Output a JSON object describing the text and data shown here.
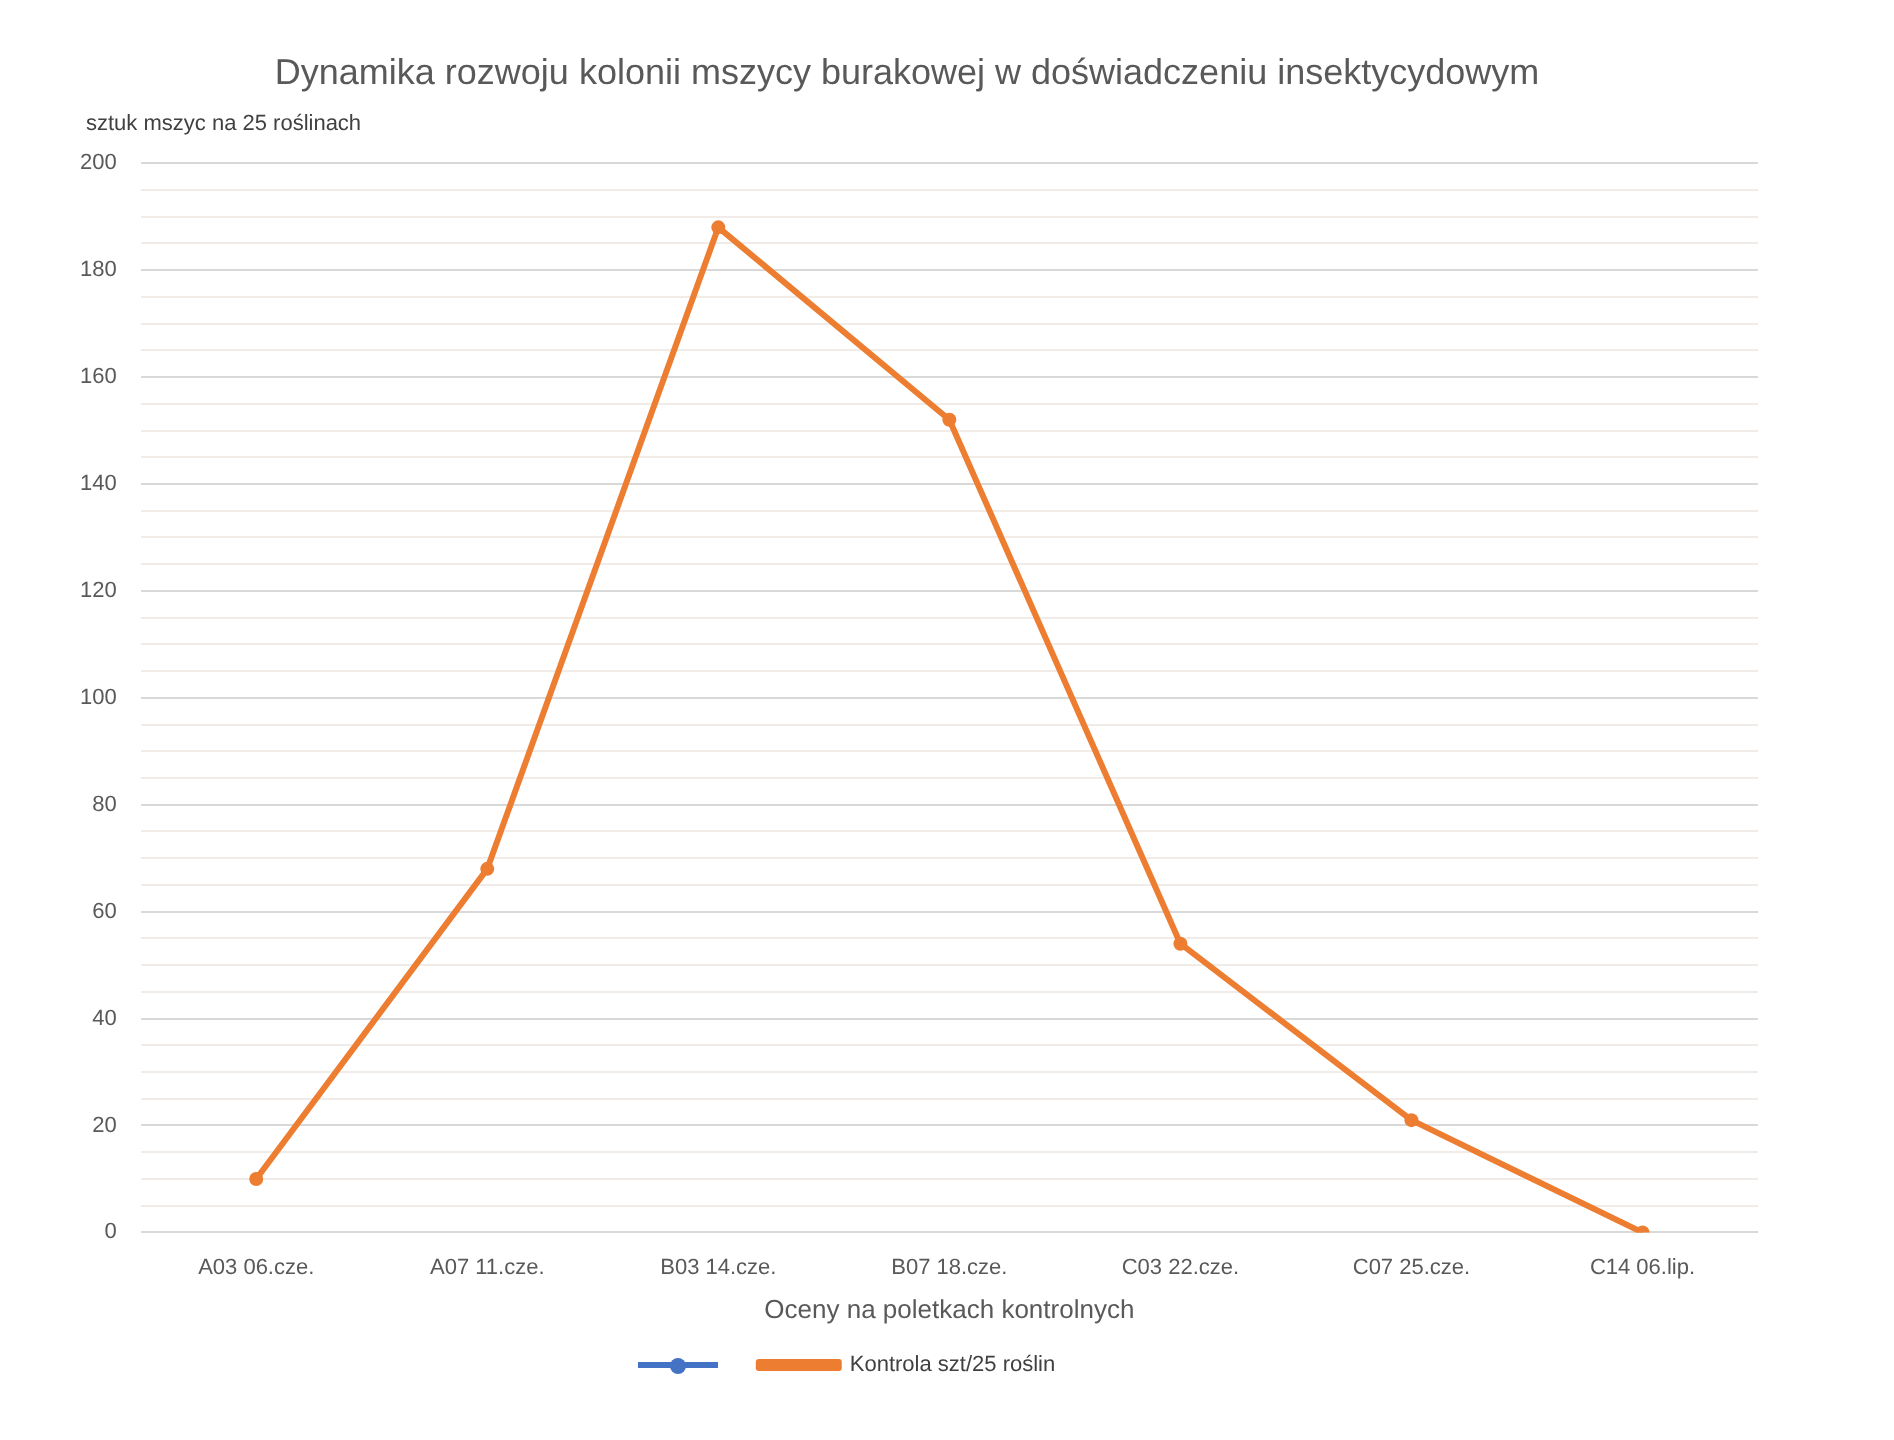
{
  "chart_data": {
    "type": "line",
    "title": "Dynamika rozwoju kolonii mszycy burakowej w doświadczeniu insektycydowym",
    "xlabel": "Oceny na poletkach kontrolnych",
    "ylabel": "sztuk mszyc na 25 roślinach",
    "categories": [
      "A03 06.cze.",
      "A07 11.cze.",
      "B03 14.cze.",
      "B07 18.cze.",
      "C03 22.cze.",
      "C07 25.cze.",
      "C14 06.lip."
    ],
    "series": [
      {
        "name": "Kontrola szt/25 roślin",
        "color": "#ed7d31",
        "values": [
          10,
          68,
          188,
          152,
          54,
          21,
          0
        ]
      }
    ],
    "ylim": [
      0,
      200
    ],
    "yticks": [
      0,
      {
        "value": 5,
        "label": null
      },
      {
        "value": 10,
        "label": null
      },
      {
        "value": 15,
        "label": null
      },
      20,
      {
        "value": 25,
        "label": null
      },
      {
        "value": 30,
        "label": null
      },
      {
        "value": 35,
        "label": null
      },
      40,
      {
        "value": 45,
        "label": null
      },
      {
        "value": 50,
        "label": null
      },
      {
        "value": 55,
        "label": null
      },
      60,
      {
        "value": 65,
        "label": null
      },
      {
        "value": 70,
        "label": null
      },
      {
        "value": 75,
        "label": null
      },
      80,
      {
        "value": 85,
        "label": null
      },
      {
        "value": 90,
        "label": null
      },
      {
        "value": 95,
        "label": null
      },
      100,
      {
        "value": 105,
        "label": null
      },
      {
        "value": 110,
        "label": null
      },
      {
        "value": 115,
        "label": null
      },
      120,
      {
        "value": 125,
        "label": null
      },
      {
        "value": 130,
        "label": null
      },
      {
        "value": 135,
        "label": null
      },
      140,
      {
        "value": 145,
        "label": null
      },
      {
        "value": 150,
        "label": null
      },
      {
        "value": 155,
        "label": null
      },
      160,
      {
        "value": 165,
        "label": null
      },
      {
        "value": 170,
        "label": null
      },
      {
        "value": 175,
        "label": null
      },
      180,
      {
        "value": 185,
        "label": null
      },
      {
        "value": 190,
        "label": null
      },
      {
        "value": 195,
        "label": null
      },
      200
    ],
    "grid": "y",
    "legend": "bottom",
    "marker": "circle",
    "line_style": "solid"
  }
}
